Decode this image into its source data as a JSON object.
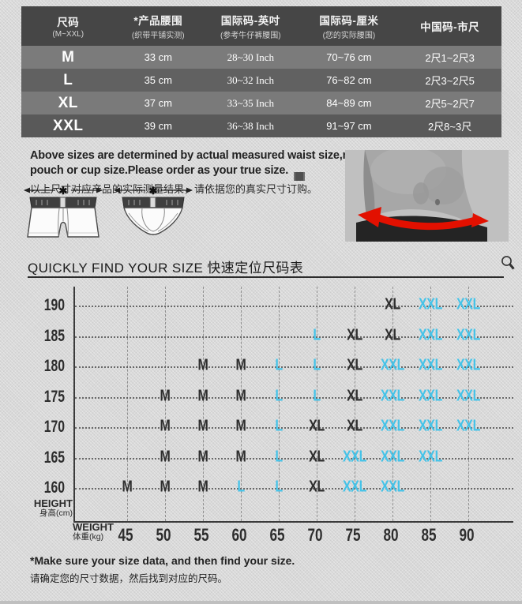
{
  "size_table": {
    "header": [
      {
        "title": "尺码",
        "subtitle": "(M~XXL)"
      },
      {
        "title": "*产品腰围",
        "subtitle": "(织带平铺实测)"
      },
      {
        "title": "国际码-英吋",
        "subtitle": "(参考牛仔裤腰围)"
      },
      {
        "title": "国际码-厘米",
        "subtitle": "(您的实际腰围)"
      },
      {
        "title": "中国码-市尺",
        "subtitle": ""
      }
    ],
    "rows": [
      {
        "size": "M",
        "product_waist": "33 cm",
        "intl_inch": "28~30 Inch",
        "intl_cm": "70~76 cm",
        "cn_size": "2尺1~2尺3"
      },
      {
        "size": "L",
        "product_waist": "35 cm",
        "intl_inch": "30~32 Inch",
        "intl_cm": "76~82 cm",
        "cn_size": "2尺3~2尺5"
      },
      {
        "size": "XL",
        "product_waist": "37 cm",
        "intl_inch": "33~35 Inch",
        "intl_cm": "84~89 cm",
        "cn_size": "2尺5~2尺7"
      },
      {
        "size": "XXL",
        "product_waist": "39 cm",
        "intl_inch": "36~38 Inch",
        "intl_cm": "91~97 cm",
        "cn_size": "2尺8~3尺"
      }
    ]
  },
  "measure_note": {
    "en_line1": "Above sizes are determined by actual measured waist size,not",
    "en_line2": "pouch or cup size.Please order as your true size.",
    "zh": "以上尺寸对应产品的实际测量结果，请依据您的真实尺寸订购。",
    "asterisk": "✱"
  },
  "section": {
    "title": "QUICKLY FIND YOUR SIZE 快速定位尺码表"
  },
  "chart_data": {
    "type": "heatmap",
    "title": "QUICKLY FIND YOUR SIZE 快速定位尺码表",
    "x_categories": [
      45,
      50,
      55,
      60,
      65,
      70,
      75,
      80,
      85,
      90
    ],
    "y_categories": [
      190,
      185,
      180,
      175,
      170,
      165,
      160
    ],
    "xlabel_en": "WEIGHT",
    "xlabel_zh": "体重(kg)",
    "ylabel_en": "HEIGHT",
    "ylabel_zh": "身高(cm)",
    "grid": "dashed",
    "legend": "none",
    "matrix": [
      [
        "",
        "",
        "",
        "",
        "",
        "",
        "",
        "XL",
        "XXL",
        "XXL"
      ],
      [
        "",
        "",
        "",
        "",
        "",
        "L",
        "XL",
        "XL",
        "XXL",
        "XXL"
      ],
      [
        "",
        "",
        "M",
        "M",
        "L",
        "L",
        "XL",
        "XXL",
        "XXL",
        "XXL"
      ],
      [
        "",
        "M",
        "M",
        "M",
        "L",
        "L",
        "XL",
        "XXL",
        "XXL",
        "XXL"
      ],
      [
        "",
        "M",
        "M",
        "M",
        "L",
        "XL",
        "XL",
        "XXL",
        "XXL",
        "XXL"
      ],
      [
        "",
        "M",
        "M",
        "M",
        "L",
        "XL",
        "XXL",
        "XXL",
        "XXL",
        ""
      ],
      [
        "M",
        "M",
        "M",
        "L",
        "L",
        "XL",
        "XXL",
        "XXL",
        "",
        ""
      ]
    ],
    "label_colors": {
      "M": "#2e2e2e",
      "L": "#45c3e8",
      "XL": "#2e2e2e",
      "XXL": "#45c3e8"
    }
  },
  "footer_note": {
    "en": "*Make sure your size data, and then find your size.",
    "zh": "请确定您的尺寸数据，然后找到对应的尺码。"
  },
  "colors": {
    "accent_cyan": "#45c3e8",
    "dark_text": "#2e2e2e",
    "arrow_red": "#e21000",
    "table_header_bg": "#464646"
  }
}
